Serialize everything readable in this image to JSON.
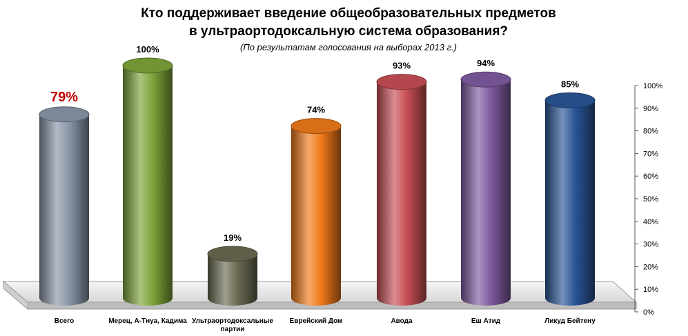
{
  "chart_data": {
    "type": "bar",
    "title_lines": [
      "Кто поддерживает введение общеобразовательных предметов",
      "в ультраортодоксальную система образования?"
    ],
    "subtitle": "(По результатам голосования на выборах 2013 г.)",
    "categories": [
      [
        "Всего"
      ],
      [
        "Мерец, А-Тнуа, Кадима"
      ],
      [
        "Ультраортодоксальные",
        "партии"
      ],
      [
        "Еврейский Дом"
      ],
      [
        "Авода"
      ],
      [
        "Еш Атид"
      ],
      [
        "Ликуд Бейтену"
      ]
    ],
    "values": [
      79,
      100,
      19,
      74,
      93,
      94,
      85
    ],
    "value_labels": [
      "79%",
      "100%",
      "19%",
      "74%",
      "93%",
      "94%",
      "85%"
    ],
    "highlight_index": 0,
    "colors": [
      "#8a96a8",
      "#7fa43a",
      "#6b6b52",
      "#f07a1a",
      "#c84f55",
      "#7f5ba0",
      "#2a5597"
    ],
    "highlight_label_color": "#c00000",
    "yticks": [
      "0%",
      "10%",
      "20%",
      "30%",
      "40%",
      "50%",
      "60%",
      "70%",
      "80%",
      "90%",
      "100%"
    ],
    "ylim": [
      0,
      100
    ],
    "y_axis_position": "right",
    "grid": false,
    "legend": "none",
    "xlabel": "",
    "ylabel": ""
  }
}
